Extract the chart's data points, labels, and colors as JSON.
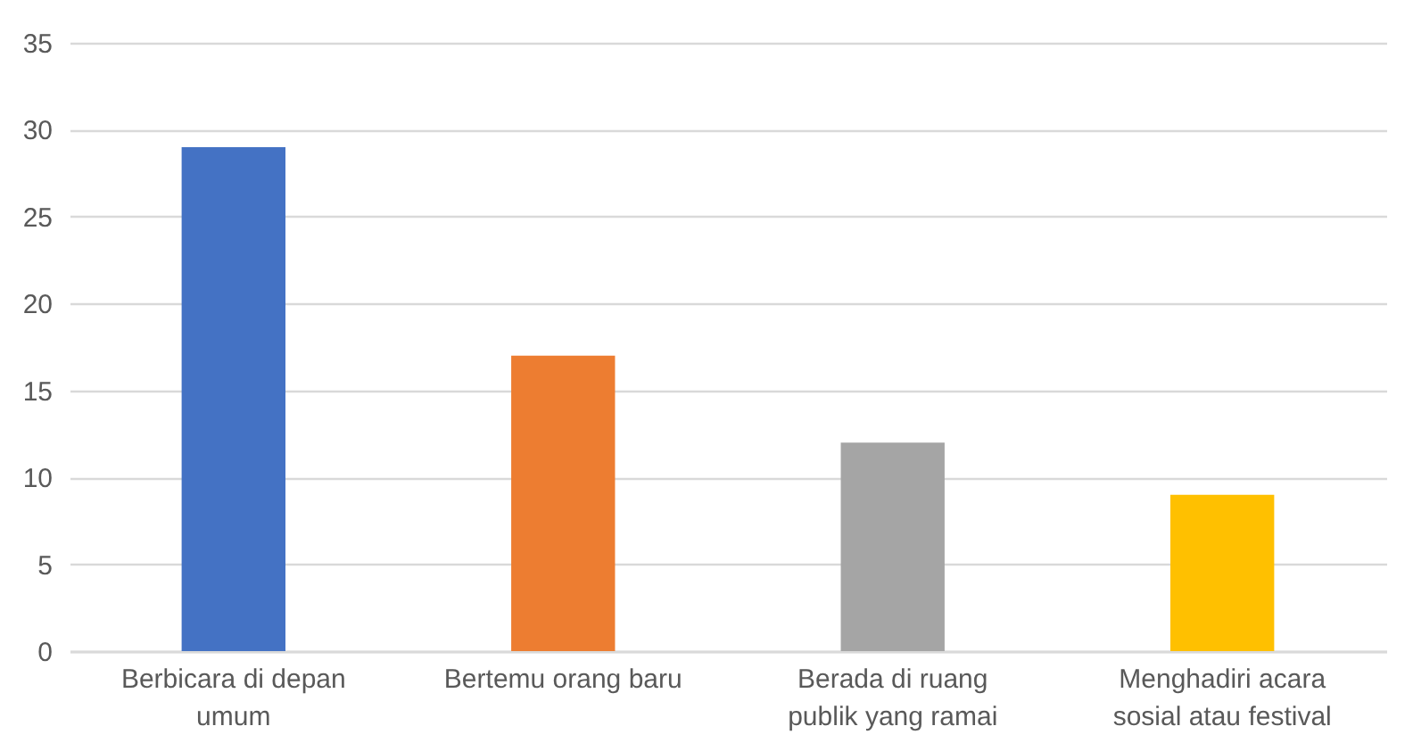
{
  "chart_data": {
    "type": "bar",
    "categories": [
      "Berbicara di depan umum",
      "Bertemu orang baru",
      "Berada di ruang publik yang ramai",
      "Menghadiri acara sosial atau festival"
    ],
    "values": [
      29,
      17,
      12,
      9
    ],
    "colors": [
      "#4472c4",
      "#ed7d31",
      "#a5a5a5",
      "#ffc000"
    ],
    "ylim": [
      0,
      35
    ],
    "yticks": [
      0,
      5,
      10,
      15,
      20,
      25,
      30,
      35
    ],
    "grid": "y",
    "legend": false
  }
}
